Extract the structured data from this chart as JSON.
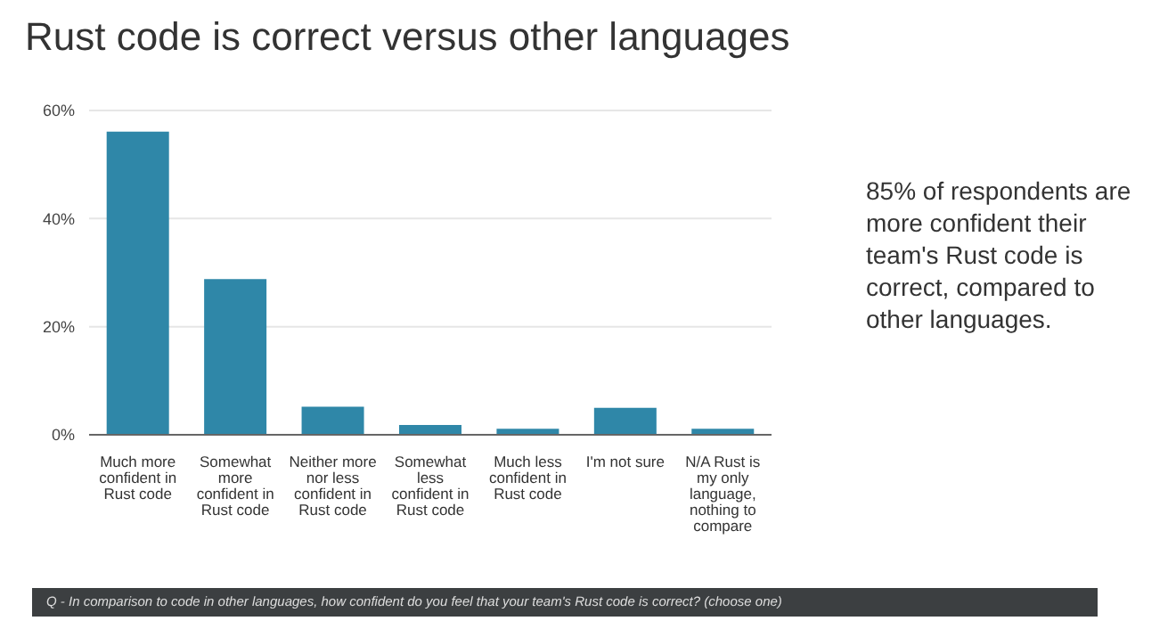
{
  "chart_data": {
    "type": "bar",
    "title": "Rust code is correct versus other languages",
    "categories": [
      "Much more confident in Rust code",
      "Somewhat more confident in Rust code",
      "Neither more nor less confident in Rust code",
      "Somewhat less confident in Rust code",
      "Much less confident in Rust code",
      "I'm not sure",
      "N/A Rust is my only language, nothing to compare"
    ],
    "values": [
      56.1,
      28.8,
      5.2,
      1.8,
      1.1,
      5.0,
      1.1
    ],
    "color": "#2f87a8",
    "ylim": [
      0,
      60
    ],
    "yticks": [
      {
        "value": 0,
        "label": "0%"
      },
      {
        "value": 20,
        "label": "20%"
      },
      {
        "value": 40,
        "label": "40%"
      },
      {
        "value": 60,
        "label": "60%"
      }
    ],
    "grid": "y",
    "annotations": [
      "85% of respondents are more confident their team's Rust code is correct, compared to other languages.",
      "Q - In comparison to code in other languages, how confident do you feel that your team's Rust code is correct? (choose one)"
    ]
  }
}
